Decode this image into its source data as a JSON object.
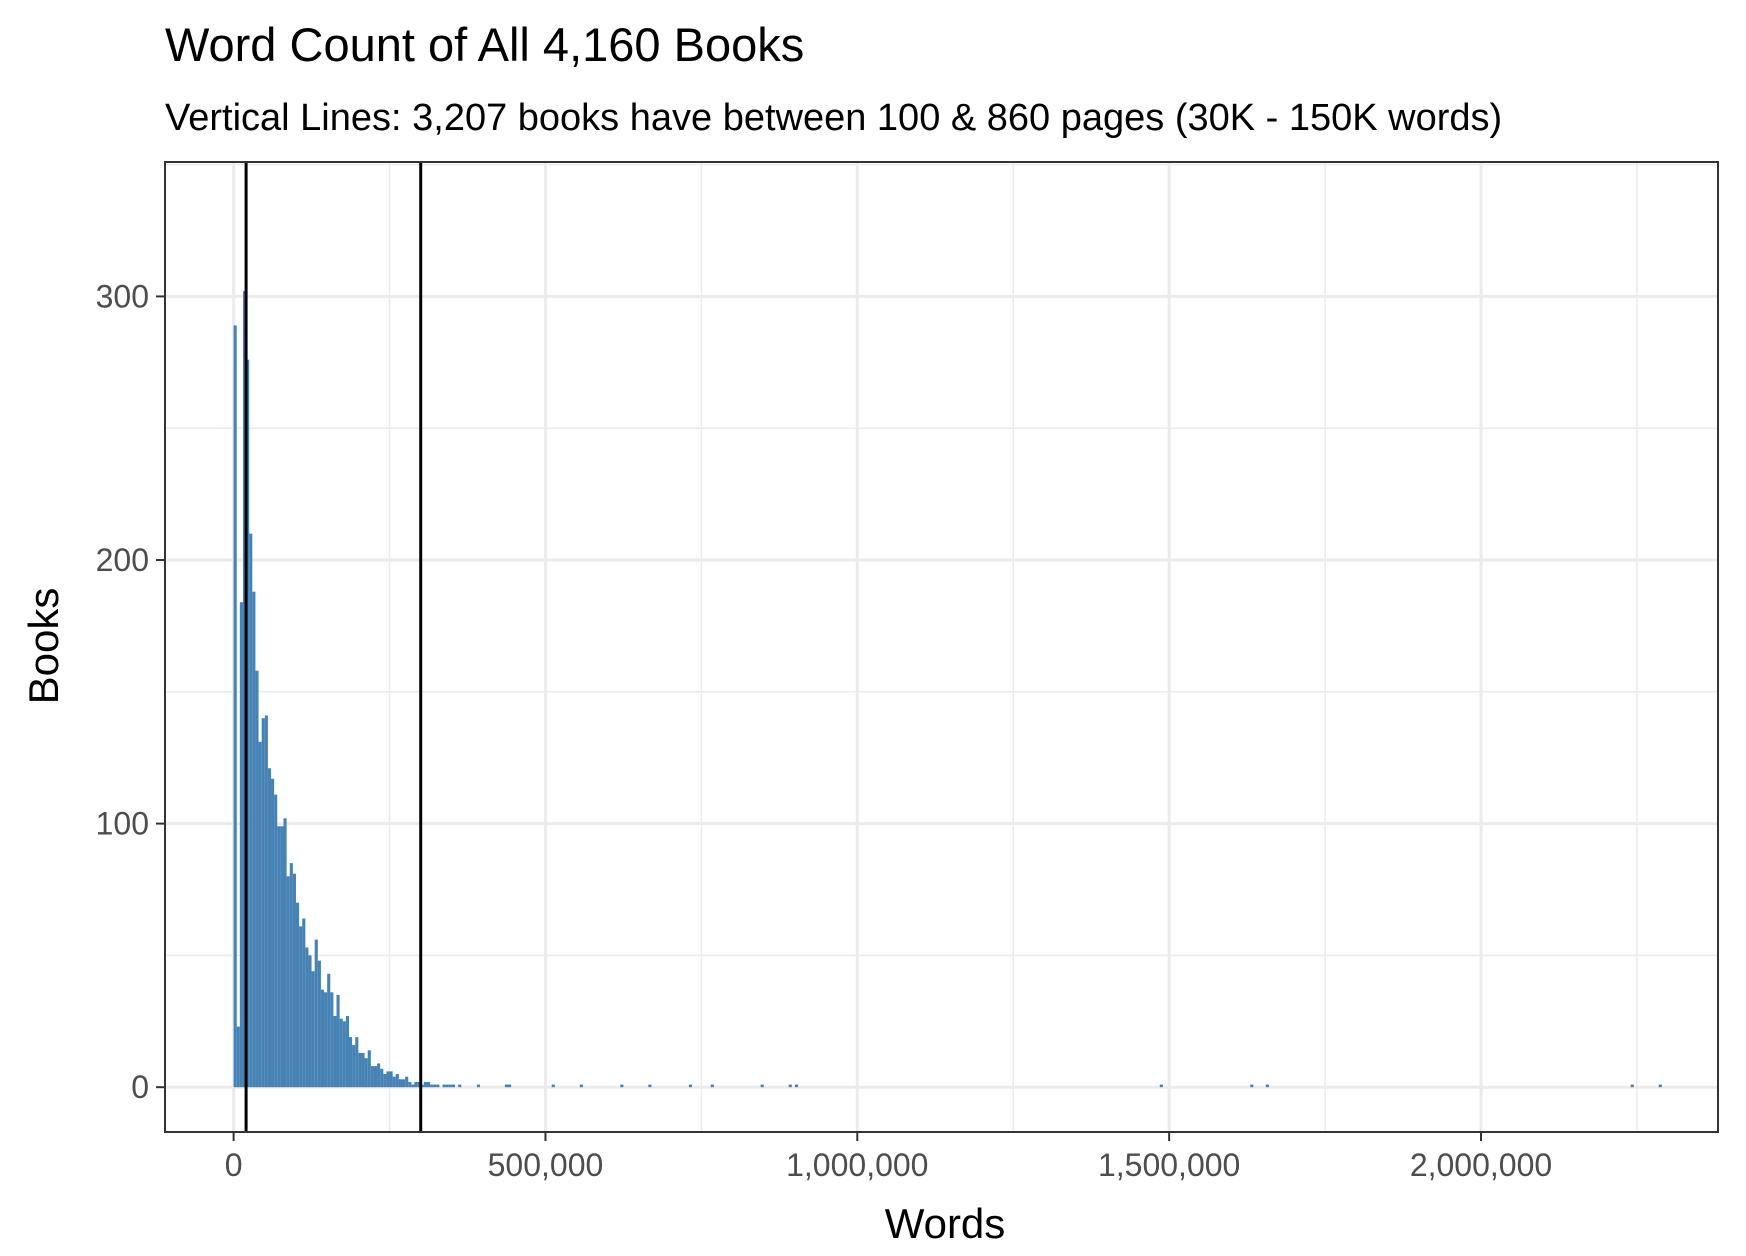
{
  "chart_data": {
    "type": "bar",
    "title": "Word Count of All 4,160 Books",
    "subtitle": "Vertical Lines: 3,207 books have between 100 & 860 pages (30K - 150K words)",
    "xlabel": "Words",
    "ylabel": "Books",
    "xlim": [
      -110000,
      2380000
    ],
    "ylim": [
      -17,
      351
    ],
    "x_ticks": [
      {
        "value": 0,
        "label": "0"
      },
      {
        "value": 500000,
        "label": "500,000"
      },
      {
        "value": 1000000,
        "label": "1,000,000"
      },
      {
        "value": 1500000,
        "label": "1,500,000"
      },
      {
        "value": 2000000,
        "label": "2,000,000"
      }
    ],
    "y_ticks": [
      {
        "value": 0,
        "label": "0"
      },
      {
        "value": 100,
        "label": "100"
      },
      {
        "value": 200,
        "label": "200"
      },
      {
        "value": 300,
        "label": "300"
      }
    ],
    "grid": true,
    "bar_color": "#4682B4",
    "bin_width": 5000,
    "bin_start": 0,
    "counts": [
      289,
      23,
      184,
      302,
      276,
      210,
      188,
      158,
      131,
      140,
      141,
      121,
      117,
      111,
      99,
      99,
      102,
      80,
      85,
      81,
      70,
      61,
      64,
      53,
      50,
      44,
      56,
      48,
      37,
      36,
      43,
      36,
      27,
      35,
      26,
      25,
      27,
      19,
      16,
      19,
      13,
      13,
      11,
      14,
      8,
      8,
      9,
      7,
      5,
      6,
      6,
      4,
      5,
      3,
      3,
      4,
      2,
      1,
      2,
      2,
      1,
      2,
      2,
      1,
      1,
      1,
      0,
      1,
      1,
      1,
      1,
      0,
      1,
      0,
      0,
      0,
      0,
      0,
      1,
      0,
      0,
      0,
      0,
      0,
      0,
      0,
      0,
      1,
      1,
      0
    ],
    "outliers": [
      {
        "x": 510000,
        "count": 1
      },
      {
        "x": 555000,
        "count": 1
      },
      {
        "x": 620000,
        "count": 1
      },
      {
        "x": 665000,
        "count": 1
      },
      {
        "x": 730000,
        "count": 1
      },
      {
        "x": 765000,
        "count": 1
      },
      {
        "x": 845000,
        "count": 1
      },
      {
        "x": 890000,
        "count": 1
      },
      {
        "x": 900000,
        "count": 1
      },
      {
        "x": 1485000,
        "count": 1
      },
      {
        "x": 1630000,
        "count": 1
      },
      {
        "x": 1655000,
        "count": 1
      },
      {
        "x": 2240000,
        "count": 1
      },
      {
        "x": 2285000,
        "count": 1
      }
    ],
    "vlines": [
      20000,
      300000
    ],
    "vline_color": "#000000"
  }
}
